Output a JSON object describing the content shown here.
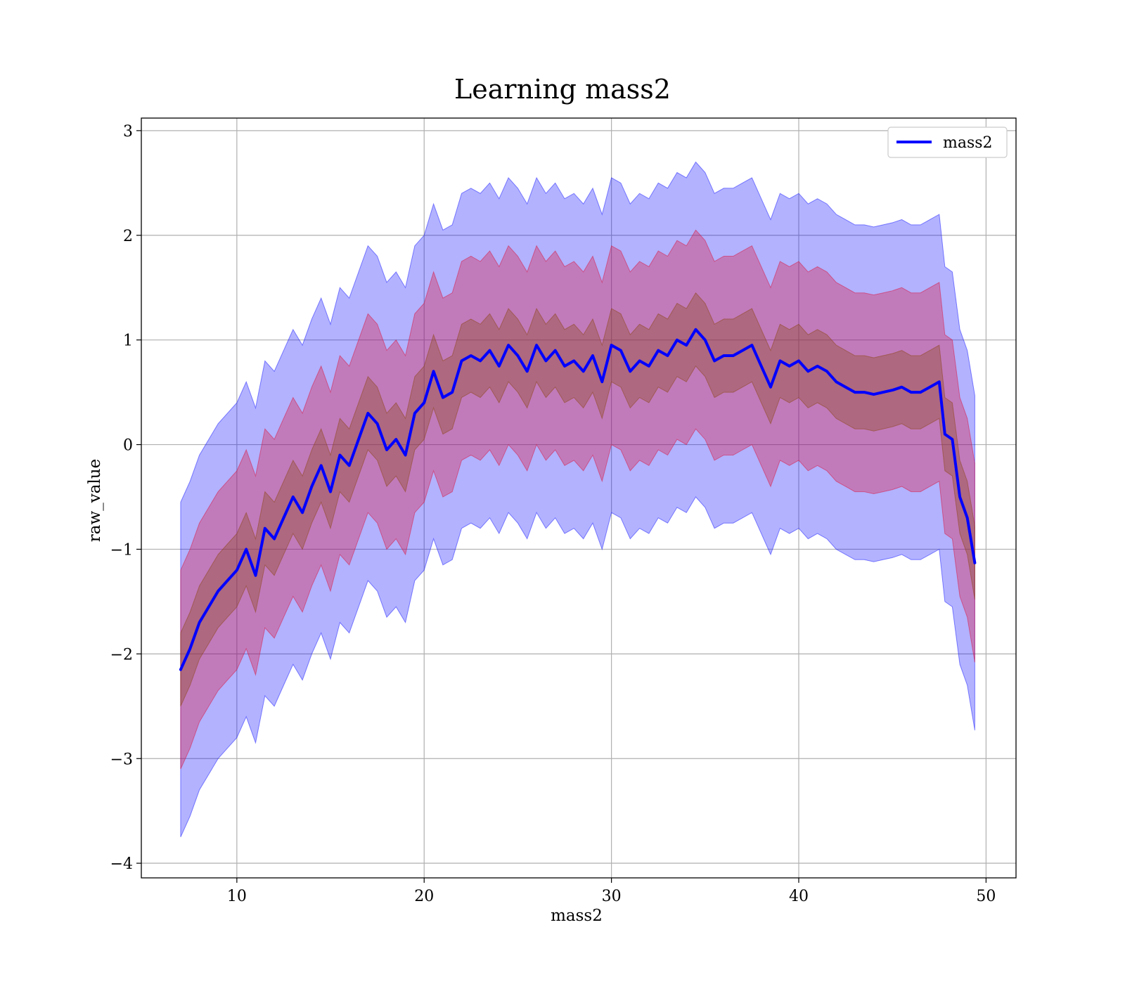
{
  "chart_data": {
    "type": "line",
    "title": "Learning mass2",
    "xlabel": "mass2",
    "ylabel": "raw_value",
    "xlim": [
      4.9,
      51.6
    ],
    "ylim": [
      -4.14,
      3.12
    ],
    "x_ticks": [
      10,
      20,
      30,
      40,
      50
    ],
    "y_ticks": [
      -4,
      -3,
      -2,
      -1,
      0,
      1,
      2,
      3
    ],
    "x_tick_labels": [
      "10",
      "20",
      "30",
      "40",
      "50"
    ],
    "y_tick_labels": [
      "−4",
      "−3",
      "−2",
      "−1",
      "0",
      "1",
      "2",
      "3"
    ],
    "grid": true,
    "legend_position": "top-right",
    "series": [
      {
        "name": "mass2",
        "color": "#0000ff",
        "x": [
          7.0,
          7.5,
          8.0,
          8.5,
          9.0,
          9.5,
          10.0,
          10.5,
          11.0,
          11.5,
          12.0,
          12.5,
          13.0,
          13.5,
          14.0,
          14.5,
          15.0,
          15.5,
          16.0,
          16.5,
          17.0,
          17.5,
          18.0,
          18.5,
          19.0,
          19.5,
          20.0,
          20.5,
          21.0,
          21.5,
          22.0,
          22.5,
          23.0,
          23.5,
          24.0,
          24.5,
          25.0,
          25.5,
          26.0,
          26.5,
          27.0,
          27.5,
          28.0,
          28.5,
          29.0,
          29.5,
          30.0,
          30.5,
          31.0,
          31.5,
          32.0,
          32.5,
          33.0,
          33.5,
          34.0,
          34.5,
          35.0,
          35.5,
          36.0,
          36.5,
          37.0,
          37.5,
          38.0,
          38.5,
          39.0,
          39.5,
          40.0,
          40.5,
          41.0,
          41.5,
          42.0,
          42.5,
          43.0,
          43.5,
          44.0,
          44.5,
          45.0,
          45.5,
          46.0,
          46.5,
          47.0,
          47.5,
          47.8,
          48.2,
          48.6,
          49.0,
          49.4
        ],
        "values": [
          -2.15,
          -1.95,
          -1.7,
          -1.55,
          -1.4,
          -1.3,
          -1.2,
          -1.0,
          -1.25,
          -0.8,
          -0.9,
          -0.7,
          -0.5,
          -0.65,
          -0.4,
          -0.2,
          -0.45,
          -0.1,
          -0.2,
          0.05,
          0.3,
          0.2,
          -0.05,
          0.05,
          -0.1,
          0.3,
          0.4,
          0.7,
          0.45,
          0.5,
          0.8,
          0.85,
          0.8,
          0.9,
          0.75,
          0.95,
          0.85,
          0.7,
          0.95,
          0.8,
          0.9,
          0.75,
          0.8,
          0.7,
          0.85,
          0.6,
          0.95,
          0.9,
          0.7,
          0.8,
          0.75,
          0.9,
          0.85,
          1.0,
          0.95,
          1.1,
          1.0,
          0.8,
          0.85,
          0.85,
          0.9,
          0.95,
          0.75,
          0.55,
          0.8,
          0.75,
          0.8,
          0.7,
          0.75,
          0.7,
          0.6,
          0.55,
          0.5,
          0.5,
          0.48,
          0.5,
          0.52,
          0.55,
          0.5,
          0.5,
          0.55,
          0.6,
          0.1,
          0.05,
          -0.5,
          -0.7,
          -1.13
        ]
      }
    ],
    "bands": [
      {
        "color": "#0000ff",
        "opacity": 0.3,
        "lower_offset": -1.6,
        "upper_offset": 1.6
      },
      {
        "color": "#dc143c",
        "opacity": 0.35,
        "lower_offset": -0.95,
        "upper_offset": 0.95
      },
      {
        "color": "#8b4513",
        "opacity": 0.35,
        "lower_offset": -0.35,
        "upper_offset": 0.35
      }
    ]
  }
}
